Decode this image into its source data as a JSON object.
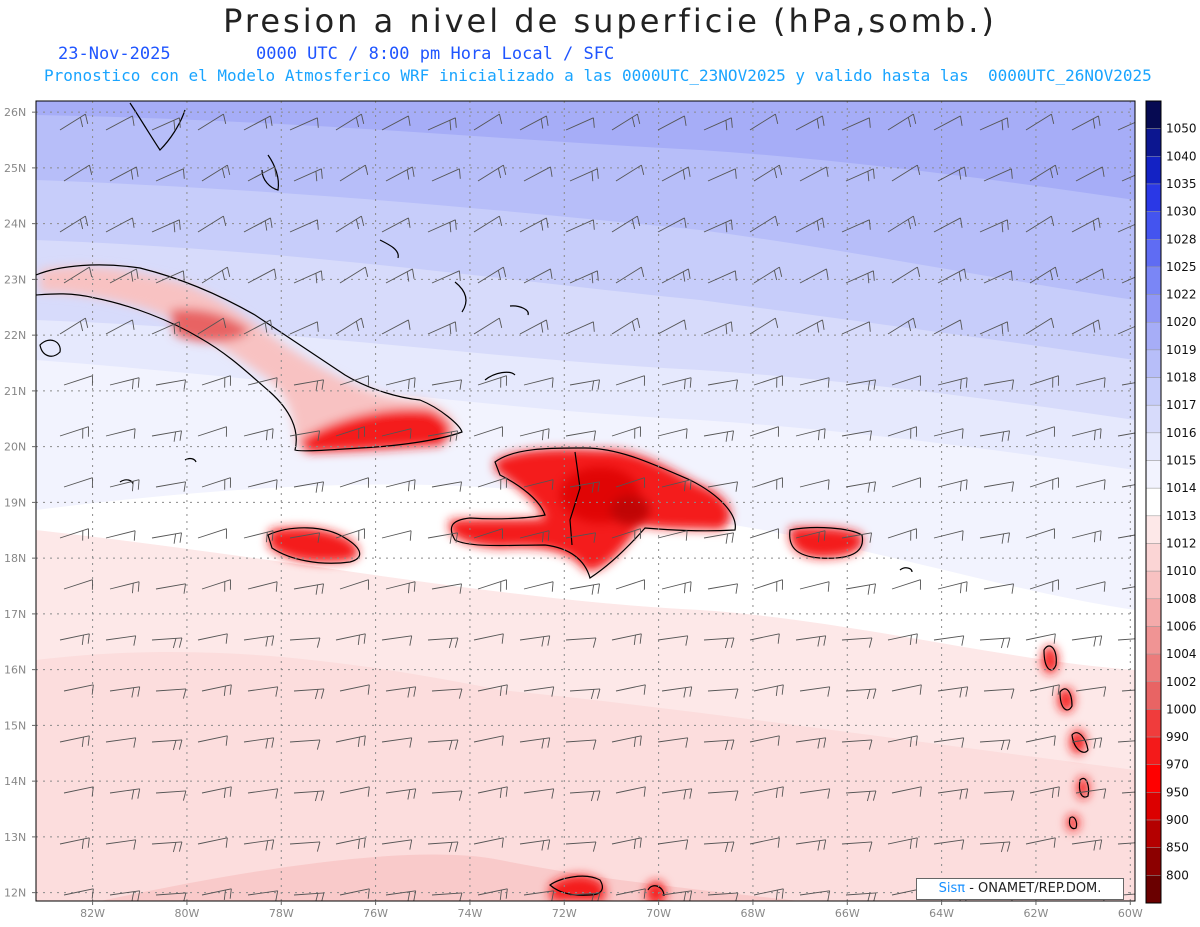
{
  "header": {
    "title": "Presion a nivel de superficie (hPa,somb.)",
    "date": "23-Nov-2025",
    "time": "0000 UTC / 8:00 pm Hora Local / SFC",
    "forecast": "Pronostico con el Modelo Atmosferico WRF inicializado a las 0000UTC_23NOV2025 y valido hasta las  0000UTC_26NOV2025"
  },
  "map": {
    "lat_labels": [
      "26N",
      "25N",
      "24N",
      "23N",
      "22N",
      "21N",
      "20N",
      "19N",
      "18N",
      "17N",
      "16N",
      "15N",
      "14N",
      "13N",
      "12N"
    ],
    "lon_labels": [
      "82W",
      "80W",
      "78W",
      "76W",
      "74W",
      "72W",
      "70W",
      "68W",
      "66W",
      "64W",
      "62W",
      "60W"
    ]
  },
  "colorbar": {
    "levels": [
      "1050",
      "1040",
      "1035",
      "1030",
      "1028",
      "1025",
      "1022",
      "1020",
      "1019",
      "1018",
      "1017",
      "1016",
      "1015",
      "1014",
      "1013",
      "1012",
      "1010",
      "1008",
      "1006",
      "1004",
      "1002",
      "1000",
      "990",
      "970",
      "950",
      "900",
      "850",
      "800"
    ],
    "colors": [
      "#060a52",
      "#0c1690",
      "#1322c4",
      "#2a38e6",
      "#4454ef",
      "#5f6cf3",
      "#7a86f6",
      "#9097f6",
      "#a6adf7",
      "#b7bef9",
      "#c7cdfa",
      "#d7dbfb",
      "#e6e9fd",
      "#f2f3fe",
      "#ffffff",
      "#fde8e8",
      "#fbd5d5",
      "#f8c2c2",
      "#f4aaaa",
      "#f09494",
      "#ec7c7c",
      "#e86464",
      "#f03c3c",
      "#f41a1a",
      "#ff0000",
      "#dc0000",
      "#b40000",
      "#8c0000",
      "#6a0000"
    ]
  },
  "credit": {
    "logo": "Sisπ",
    "org": " - ONAMET/REP.DOM."
  }
}
